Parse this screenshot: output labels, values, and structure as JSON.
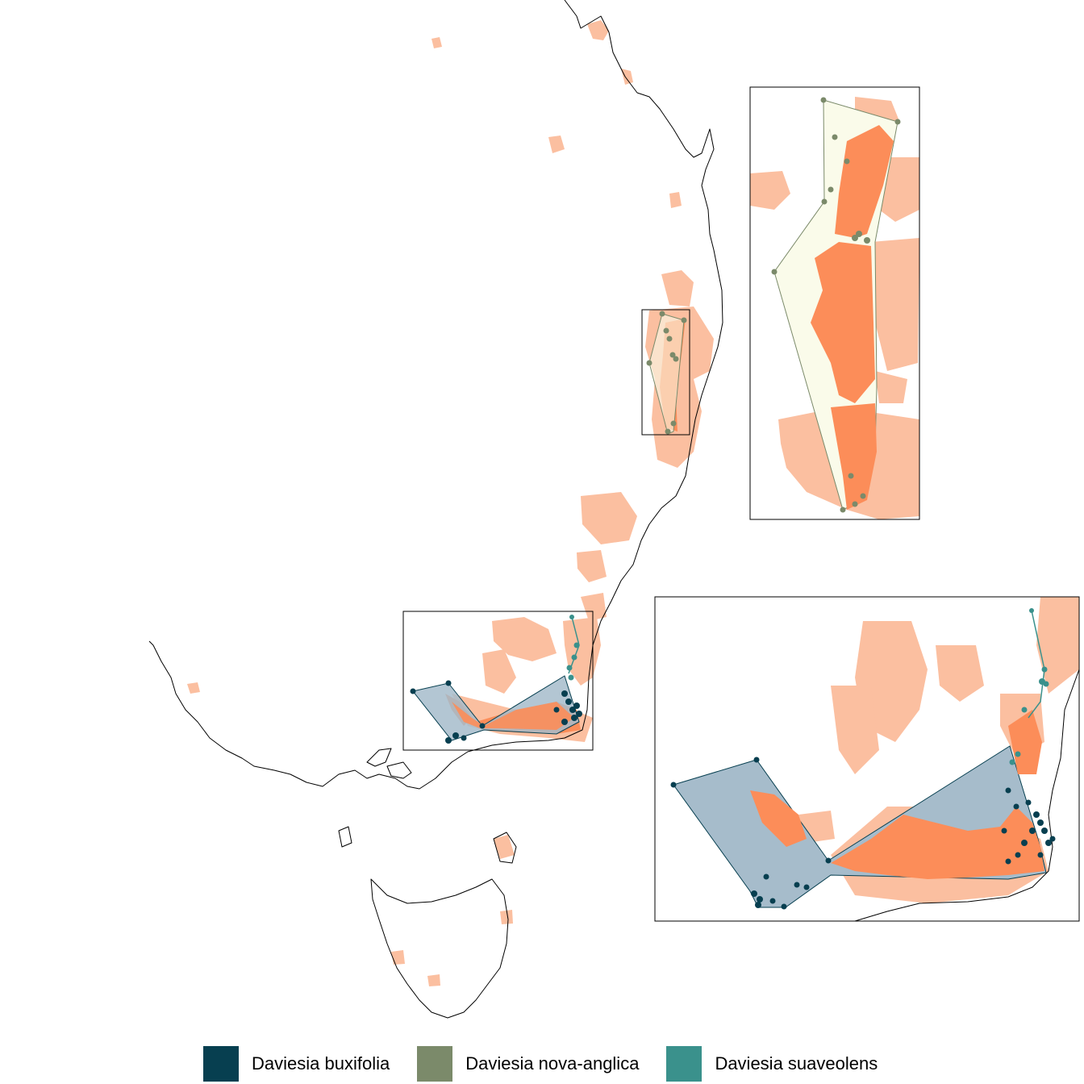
{
  "legend": {
    "items": [
      {
        "label": "Daviesia buxifolia",
        "color": "#073f50"
      },
      {
        "label": "Daviesia nova-anglica",
        "color": "#7b8a6a"
      },
      {
        "label": "Daviesia suaveolens",
        "color": "#3a918c"
      }
    ]
  },
  "colors": {
    "habitat_suitable": "#fbbfa0",
    "habitat_core": "#fc8d59",
    "hull_nova_anglica_fill": "#fafbea",
    "hull_buxifolia_fill": "#a6bccb",
    "coastline": "#000000"
  }
}
